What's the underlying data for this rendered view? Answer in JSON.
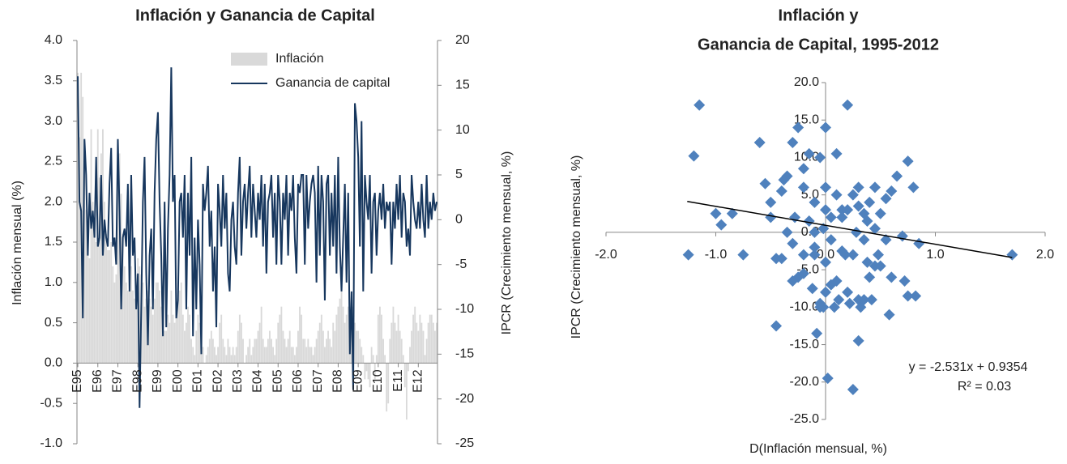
{
  "chart_data": [
    {
      "type": "combo",
      "title": "Inflación  y Ganancia de Capital",
      "y_label": "Inflación mensual (%)",
      "y2_label": "IPCR (Crecimiento mensual, %)",
      "ylim": [
        -1,
        4
      ],
      "yticks": [
        {
          "value": 4,
          "label": "4.0"
        },
        {
          "value": 3.5,
          "label": "3.5"
        },
        {
          "value": 3,
          "label": "3.0"
        },
        {
          "value": 2.5,
          "label": "2.5"
        },
        {
          "value": 2,
          "label": "2.0"
        },
        {
          "value": 1.5,
          "label": "1.5"
        },
        {
          "value": 1,
          "label": "1.0"
        },
        {
          "value": 0.5,
          "label": "0.5"
        },
        {
          "value": 0,
          "label": "0.0"
        },
        {
          "value": -0.5,
          "label": "-0.5"
        },
        {
          "value": -1,
          "label": "-1.0"
        }
      ],
      "y2lim": [
        -25,
        20
      ],
      "y2ticks": [
        20,
        15,
        10,
        5,
        0,
        -5,
        -10,
        -15,
        -20,
        -25
      ],
      "categories": [
        "E95",
        null,
        null,
        null,
        null,
        null,
        null,
        null,
        null,
        null,
        null,
        null,
        "E96",
        null,
        null,
        null,
        null,
        null,
        null,
        null,
        null,
        null,
        null,
        null,
        "E97",
        null,
        null,
        null,
        null,
        null,
        null,
        null,
        null,
        null,
        null,
        null,
        "E98",
        null,
        null,
        null,
        null,
        null,
        null,
        null,
        null,
        null,
        null,
        null,
        "E99",
        null,
        null,
        null,
        null,
        null,
        null,
        null,
        null,
        null,
        null,
        null,
        "E00",
        null,
        null,
        null,
        null,
        null,
        null,
        null,
        null,
        null,
        null,
        null,
        "E01",
        null,
        null,
        null,
        null,
        null,
        null,
        null,
        null,
        null,
        null,
        null,
        "E02",
        null,
        null,
        null,
        null,
        null,
        null,
        null,
        null,
        null,
        null,
        null,
        "E03",
        null,
        null,
        null,
        null,
        null,
        null,
        null,
        null,
        null,
        null,
        null,
        "E04",
        null,
        null,
        null,
        null,
        null,
        null,
        null,
        null,
        null,
        null,
        null,
        "E05",
        null,
        null,
        null,
        null,
        null,
        null,
        null,
        null,
        null,
        null,
        null,
        "E06",
        null,
        null,
        null,
        null,
        null,
        null,
        null,
        null,
        null,
        null,
        null,
        "E07",
        null,
        null,
        null,
        null,
        null,
        null,
        null,
        null,
        null,
        null,
        null,
        "E08",
        null,
        null,
        null,
        null,
        null,
        null,
        null,
        null,
        null,
        null,
        null,
        "E09",
        null,
        null,
        null,
        null,
        null,
        null,
        null,
        null,
        null,
        null,
        null,
        "E10",
        null,
        null,
        null,
        null,
        null,
        null,
        null,
        null,
        null,
        null,
        null,
        "E11",
        null,
        null,
        null,
        null,
        null,
        null,
        null,
        null,
        null,
        null,
        null,
        "E12",
        null,
        null,
        null,
        null,
        null,
        null,
        null,
        null,
        null,
        null,
        null
      ],
      "series": [
        {
          "name": "Inflación",
          "type": "bar",
          "color": "#d9d9d9",
          "values": [
            3.6,
            2.8,
            3.6,
            3.3,
            2.6,
            1.9,
            1.4,
            1.3,
            2.9,
            2.0,
            1.6,
            1.5,
            2.9,
            2.3,
            2.6,
            2.9,
            2.0,
            1.6,
            1.4,
            1.4,
            1.5,
            1.2,
            1.0,
            1.1,
            2.5,
            2.6,
            2.1,
            1.6,
            1.2,
            1.0,
            0.9,
            0.9,
            1.2,
            0.9,
            0.8,
            1.1,
            1.3,
            1.2,
            1.1,
            1.0,
            0.7,
            0.8,
            0.9,
            0.8,
            0.7,
            0.6,
            0.8,
            1.0,
            1.0,
            0.9,
            0.7,
            0.6,
            0.4,
            0.4,
            0.6,
            0.5,
            0.9,
            0.6,
            0.5,
            0.7,
            0.8,
            0.9,
            1.0,
            0.6,
            0.4,
            0.5,
            0.7,
            0.6,
            0.3,
            0.2,
            0.1,
            0.4,
            0.6,
            0.5,
            0.4,
            0.2,
            0.0,
            0.1,
            0.2,
            0.3,
            0.4,
            0.3,
            0.2,
            0.1,
            0.2,
            0.5,
            0.6,
            0.3,
            0.2,
            0.1,
            0.3,
            0.2,
            0.1,
            0.2,
            0.1,
            0.2,
            0.4,
            0.6,
            0.5,
            0.3,
            0.0,
            0.1,
            0.2,
            0.3,
            0.1,
            0.2,
            0.3,
            0.3,
            0.4,
            0.5,
            0.7,
            0.3,
            0.2,
            0.2,
            0.3,
            0.4,
            0.3,
            0.2,
            0.1,
            0.3,
            0.5,
            0.6,
            0.7,
            0.4,
            0.3,
            0.2,
            0.3,
            0.4,
            0.2,
            0.2,
            0.1,
            0.2,
            0.4,
            0.7,
            0.6,
            0.3,
            0.3,
            0.2,
            0.3,
            0.2,
            0.2,
            0.1,
            0.2,
            0.3,
            0.4,
            0.5,
            0.6,
            0.4,
            0.2,
            0.3,
            0.4,
            0.3,
            0.2,
            0.5,
            0.4,
            0.6,
            0.7,
            0.8,
            1.1,
            0.7,
            0.5,
            0.6,
            0.7,
            0.6,
            0.5,
            0.7,
            0.5,
            0.4,
            0.4,
            0.3,
            0.2,
            0.1,
            -0.2,
            -0.1,
            -0.2,
            -0.3,
            0.2,
            0.1,
            -0.2,
            0.1,
            0.6,
            0.7,
            0.6,
            0.3,
            0.1,
            -0.6,
            -0.5,
            0.3,
            0.5,
            0.7,
            0.5,
            0.4,
            0.6,
            0.4,
            0.3,
            0.1,
            -0.3,
            -0.7,
            -0.1,
            0.2,
            0.4,
            0.6,
            0.7,
            0.5,
            0.4,
            0.6,
            0.5,
            0.4,
            0.1,
            0.3,
            0.5,
            0.6,
            0.6,
            0.5,
            0.4,
            0.5
          ]
        },
        {
          "name": "Ganancia de capital",
          "type": "line",
          "axis": "y2",
          "color": "#17375e",
          "values": [
            16,
            2,
            1,
            -11,
            9,
            5,
            -4,
            3,
            -1,
            1,
            -2,
            7,
            -3,
            -2,
            5,
            -4,
            0,
            -2,
            -3,
            4,
            8,
            -3,
            -2,
            -5,
            9,
            1,
            -10,
            -2,
            -1,
            -3,
            4,
            -8,
            5,
            -4,
            -2,
            -10,
            -6,
            -21,
            -10,
            2,
            7,
            -6,
            -14,
            -4,
            -1,
            -10,
            3,
            9,
            12,
            2,
            -4,
            -13,
            2,
            -12,
            -1,
            5,
            17,
            2,
            5,
            -11,
            -9,
            2,
            3,
            -2,
            5,
            -10,
            3,
            -4,
            7,
            -13,
            -2,
            -10,
            0,
            -5,
            -15,
            4,
            1,
            3,
            6,
            -3,
            1,
            -8,
            -3,
            -12,
            4,
            1,
            -3,
            5,
            -1,
            3,
            -6,
            -8,
            0,
            2,
            -3,
            -5,
            3,
            7,
            -4,
            2,
            4,
            -1,
            3,
            6,
            -2,
            4,
            1,
            -2,
            3,
            0,
            5,
            -3,
            4,
            -6,
            2,
            3,
            5,
            -2,
            3,
            -5,
            5,
            2,
            -5,
            3,
            0,
            5,
            -4,
            3,
            1,
            5,
            -2,
            -6,
            4,
            3,
            5,
            5,
            -5,
            5,
            -1,
            2,
            4,
            5,
            3,
            -7,
            6,
            -4,
            5,
            2,
            -9,
            4,
            5,
            -4,
            3,
            -3,
            5,
            -6,
            7,
            -3,
            -8,
            -2,
            4,
            -7,
            3,
            -15,
            -8,
            -19,
            13,
            11,
            7,
            -3,
            11,
            -8,
            5,
            2,
            0,
            5,
            -6,
            2,
            3,
            -4,
            1,
            3,
            0,
            4,
            -1,
            2,
            1,
            2,
            -5,
            2,
            -1,
            4,
            0,
            5,
            -2,
            3,
            2,
            -3,
            -1,
            -4,
            5,
            2,
            0,
            -1,
            2,
            -1,
            4,
            0,
            -2,
            5,
            -1,
            2,
            0,
            3,
            1,
            2
          ]
        }
      ]
    },
    {
      "type": "scatter",
      "title": [
        "Inflación y",
        "Ganancia de Capital, 1995-2012"
      ],
      "x_label": "D(Inflación mensual, %)",
      "y_label": "IPCR (Crecimiento mensual, %)",
      "xlim": [
        -2,
        2
      ],
      "xticks": [
        {
          "value": -2,
          "label": "-2.0"
        },
        {
          "value": -1,
          "label": "-1.0"
        },
        {
          "value": 0,
          "label": "0.0"
        },
        {
          "value": 1,
          "label": "1.0"
        },
        {
          "value": 2,
          "label": "2.0"
        }
      ],
      "ylim": [
        -25,
        20
      ],
      "yticks": [
        {
          "value": 20,
          "label": "20.0"
        },
        {
          "value": 15,
          "label": "15.0"
        },
        {
          "value": 10,
          "label": "10.0"
        },
        {
          "value": 5,
          "label": "5.0"
        },
        {
          "value": 0,
          "label": "0.0"
        },
        {
          "value": -5,
          "label": "-5.0"
        },
        {
          "value": -10,
          "label": "-10.0"
        },
        {
          "value": -15,
          "label": "-15.0"
        },
        {
          "value": -20,
          "label": "-20.0"
        },
        {
          "value": -25,
          "label": "-25.0"
        }
      ],
      "color": "#4f81bd",
      "x": [
        -1.15,
        -1.2,
        -1.25,
        -0.95,
        -1.0,
        -0.85,
        -0.45,
        -0.6,
        -0.5,
        -0.4,
        -0.55,
        -0.3,
        -0.35,
        -0.2,
        -0.25,
        -0.1,
        -0.15,
        0.0,
        -0.05,
        0.1,
        0.2,
        0.25,
        0.3,
        0.15,
        0.05,
        -0.02,
        0.35,
        0.4,
        0.45,
        0.5,
        0.55,
        0.6,
        0.65,
        0.7,
        0.75,
        0.8,
        0.85,
        0.72,
        -0.3,
        -0.2,
        -0.1,
        0.0,
        0.1,
        0.2,
        0.3,
        0.4,
        0.5,
        -0.4,
        -0.35,
        -0.15,
        0.05,
        0.15,
        0.25,
        0.35,
        0.45,
        -0.25,
        -0.05,
        0.12,
        0.22,
        0.32,
        0.42,
        -0.45,
        -0.3,
        -0.2,
        -0.1,
        0.0,
        0.08,
        0.18,
        0.28,
        0.38,
        0.48,
        0.58,
        -0.12,
        -0.02,
        0.05,
        -0.08,
        0.02,
        0.25,
        0.3,
        0.35,
        -0.05,
        0.0,
        0.6,
        0.75,
        0.82,
        1.7,
        -0.75,
        -0.5,
        0.3,
        0.1,
        -0.38,
        -0.28,
        0.38,
        0.55,
        0.2,
        0.0,
        -0.1,
        0.15,
        0.45,
        -0.2
      ],
      "y": [
        17,
        10.2,
        -3,
        1,
        2.5,
        2.5,
        -3.5,
        12,
        4,
        5.5,
        6.5,
        12,
        7.5,
        8.5,
        14,
        4,
        10.5,
        14,
        10,
        10.5,
        17,
        5,
        6,
        3,
        2,
        0.5,
        2.5,
        4,
        6,
        2.5,
        4.5,
        5.5,
        7.5,
        -0.5,
        9.5,
        6,
        -1.5,
        -6.5,
        -1.5,
        -3,
        -2,
        -4,
        -6.5,
        -8,
        -9,
        -6,
        -4.5,
        -3.5,
        0,
        1.5,
        -1,
        -2.5,
        -3,
        -1,
        0.5,
        -6,
        -10,
        -9,
        -9.5,
        -10,
        -9,
        -12.5,
        -6.5,
        -5.5,
        -3,
        -8,
        -10,
        -3,
        0,
        -4,
        -3,
        -11,
        -7.5,
        -10,
        -7,
        -13.5,
        -19.5,
        -21,
        -14.5,
        -9,
        -9.5,
        3,
        -6,
        -8.5,
        -8.5,
        -3,
        -3,
        2,
        3.5,
        5,
        7,
        2,
        1.5,
        -1,
        3,
        6,
        0,
        2,
        -4.5,
        6
      ],
      "trendline": {
        "label": "y = -2.531x + 0.9354",
        "r2_label": "R² = 0.03",
        "slope": -2.531,
        "intercept": 0.9354,
        "xrange": [
          -1.26,
          1.7
        ]
      }
    }
  ]
}
